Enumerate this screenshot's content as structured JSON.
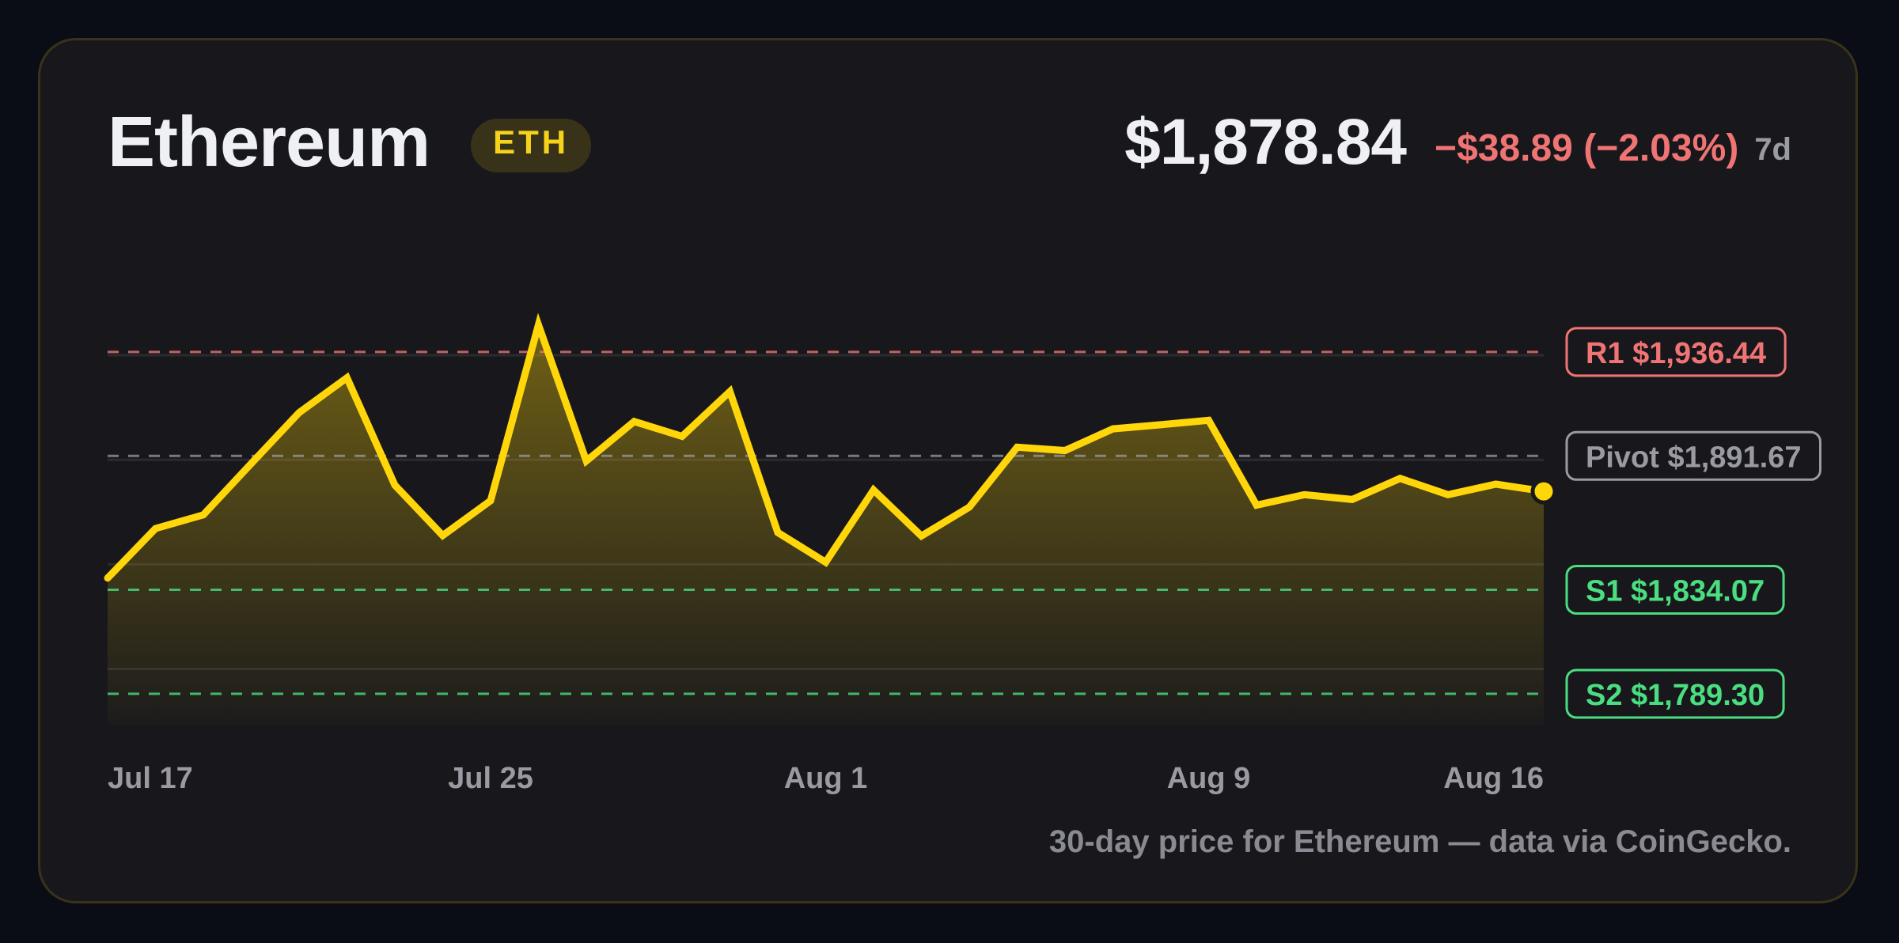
{
  "header": {
    "asset_name": "Ethereum",
    "ticker": "ETH",
    "price": "$1,878.84",
    "change": "−$38.89 (−2.03%)",
    "period": "7d"
  },
  "caption": "30-day price for Ethereum — data via CoinGecko.",
  "colors": {
    "line": "#ffd60a",
    "resistance": "#f07474",
    "pivot": "#9a9aa2",
    "support": "#4ade80",
    "background": "#18181c",
    "page": "#0a0d16"
  },
  "chart_data": {
    "type": "area",
    "title": "",
    "xlabel": "",
    "ylabel": "",
    "x_ticks": [
      {
        "day": 0,
        "label": "Jul 17"
      },
      {
        "day": 8,
        "label": "Jul 25"
      },
      {
        "day": 15,
        "label": "Aug 1"
      },
      {
        "day": 23,
        "label": "Aug 9"
      },
      {
        "day": 30,
        "label": "Aug 16"
      }
    ],
    "dates": [
      "Jul 17",
      "Jul 18",
      "Jul 19",
      "Jul 20",
      "Jul 21",
      "Jul 22",
      "Jul 23",
      "Jul 24",
      "Jul 25",
      "Jul 26",
      "Jul 27",
      "Jul 28",
      "Jul 29",
      "Jul 30",
      "Jul 31",
      "Aug 1",
      "Aug 2",
      "Aug 3",
      "Aug 4",
      "Aug 5",
      "Aug 6",
      "Aug 7",
      "Aug 8",
      "Aug 9",
      "Aug 10",
      "Aug 11",
      "Aug 12",
      "Aug 13",
      "Aug 14",
      "Aug 15",
      "Aug 16"
    ],
    "values": [
      1839.1,
      1860.4,
      1866.3,
      1888.4,
      1910.3,
      1925.3,
      1879.1,
      1857.4,
      1872.4,
      1948.1,
      1889.5,
      1906.5,
      1900.1,
      1919.4,
      1858.7,
      1845.9,
      1877.0,
      1857.2,
      1869.6,
      1895.4,
      1894.0,
      1903.3,
      1905.1,
      1907.0,
      1870.5,
      1875.0,
      1872.9,
      1882.0,
      1875.0,
      1879.5,
      1876.4
    ],
    "ylim": [
      1776,
      1950
    ],
    "gridlines": [
      1800,
      1845,
      1890,
      1935
    ],
    "levels": [
      {
        "label": "R1 $1,936.44",
        "value": 1936.44,
        "kind": "resistance"
      },
      {
        "label": "Pivot $1,891.67",
        "value": 1891.67,
        "kind": "pivot"
      },
      {
        "label": "S1 $1,834.07",
        "value": 1834.07,
        "kind": "support"
      },
      {
        "label": "S2 $1,789.30",
        "value": 1789.3,
        "kind": "support"
      }
    ],
    "grid": true,
    "last_point_marker": true
  }
}
